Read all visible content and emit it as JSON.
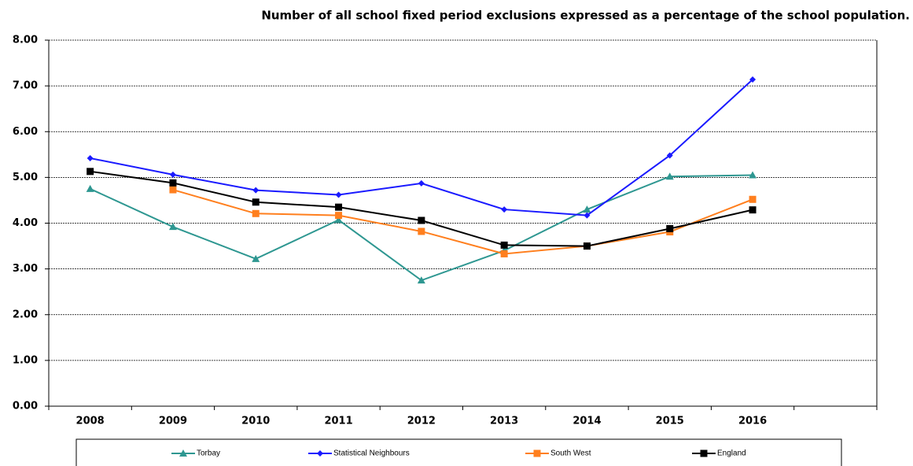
{
  "chart_data": {
    "type": "line",
    "title": "Number of all school fixed period exclusions  expressed as a percentage of the school population.",
    "categories": [
      "2008",
      "2009",
      "2010",
      "2011",
      "2012",
      "2013",
      "2014",
      "2015",
      "2016",
      null
    ],
    "series": [
      {
        "name": "Torbay",
        "color": "#2e9791",
        "marker": "triangle",
        "values": [
          4.75,
          3.92,
          3.22,
          4.07,
          2.75,
          3.4,
          4.3,
          5.02,
          5.05,
          null
        ]
      },
      {
        "name": "Statistical Neighbours",
        "color": "#1a1aff",
        "marker": "diamond",
        "values": [
          5.42,
          5.06,
          4.72,
          4.62,
          4.87,
          4.3,
          4.17,
          5.48,
          7.14,
          null
        ]
      },
      {
        "name": "South West",
        "color": "#ff7f1e",
        "marker": "square",
        "values": [
          null,
          4.73,
          4.21,
          4.17,
          3.82,
          3.33,
          3.5,
          3.81,
          4.52,
          null
        ]
      },
      {
        "name": "England",
        "color": "#000000",
        "marker": "square",
        "values": [
          5.13,
          4.88,
          4.46,
          4.35,
          4.06,
          3.52,
          3.5,
          3.88,
          4.29,
          null
        ]
      }
    ],
    "ylim": [
      0,
      8
    ],
    "yticks": [
      {
        "value": 0,
        "label": "0.00"
      },
      {
        "value": 1,
        "label": "1.00"
      },
      {
        "value": 2,
        "label": "2.00"
      },
      {
        "value": 3,
        "label": "3.00"
      },
      {
        "value": 4,
        "label": "4.00"
      },
      {
        "value": 5,
        "label": "5.00"
      },
      {
        "value": 6,
        "label": "6.00"
      },
      {
        "value": 7,
        "label": "7.00"
      },
      {
        "value": 8,
        "label": "8.00"
      }
    ],
    "grid": true
  }
}
